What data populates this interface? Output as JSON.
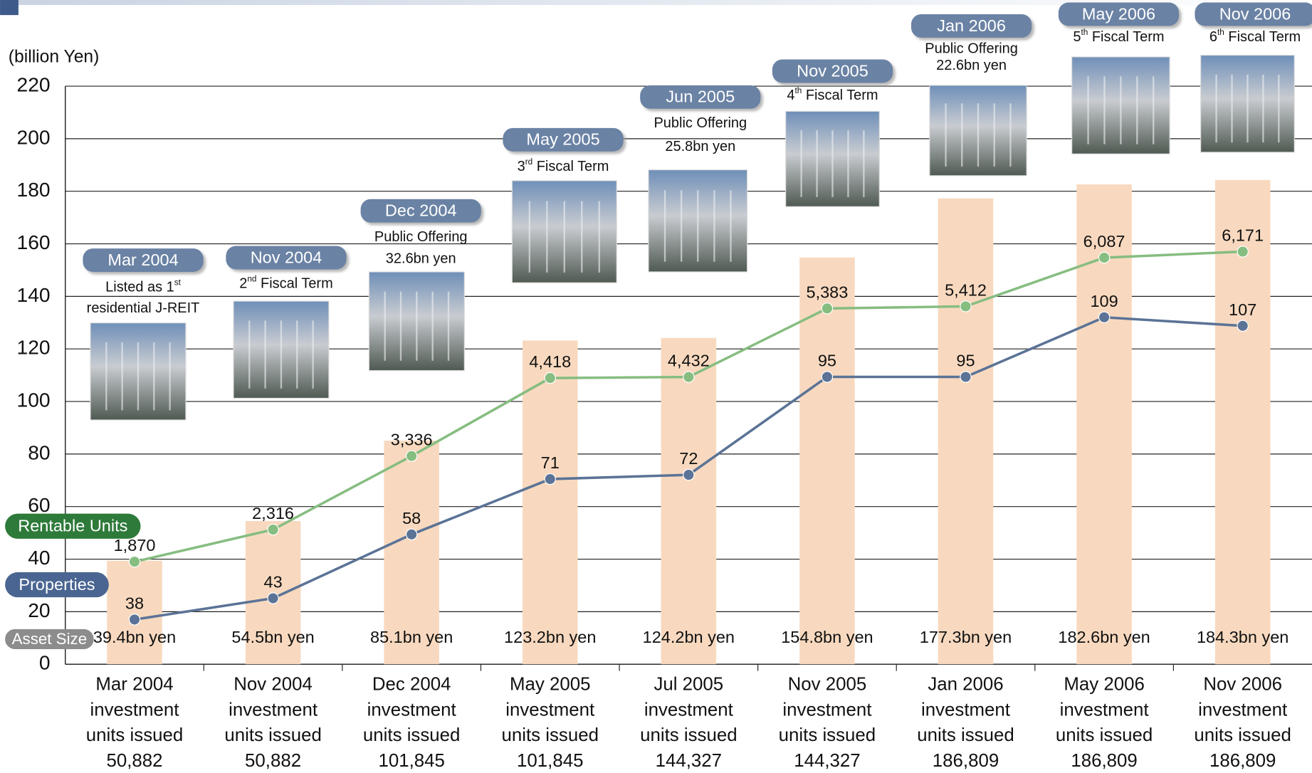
{
  "chart_data": {
    "type": "bar",
    "y_label": "(billion Yen)",
    "categories": [
      [
        "Mar 2004",
        "investment",
        "units issued",
        "50,882"
      ],
      [
        "Nov 2004",
        "investment",
        "units issued",
        "50,882"
      ],
      [
        "Dec 2004",
        "investment",
        "units issued",
        "101,845"
      ],
      [
        "May 2005",
        "investment",
        "units issued",
        "101,845"
      ],
      [
        "Jul 2005",
        "investment",
        "units issued",
        "144,327"
      ],
      [
        "Nov 2005",
        "investment",
        "units issued",
        "144,327"
      ],
      [
        "Jan 2006",
        "investment",
        "units issued",
        "186,809"
      ],
      [
        "May 2006",
        "investment",
        "units issued",
        "186,809"
      ],
      [
        "Nov 2006",
        "investment",
        "units issued",
        "186,809"
      ]
    ],
    "series": [
      {
        "name": "Asset Size",
        "type": "bar",
        "color": "#f8d9bf",
        "badge_color": "#8c8c8c",
        "values": [
          39.4,
          54.5,
          85.1,
          123.2,
          124.2,
          154.8,
          177.3,
          182.6,
          184.3
        ],
        "value_labels": [
          "39.4bn yen",
          "54.5bn yen",
          "85.1bn yen",
          "123.2bn yen",
          "124.2bn yen",
          "154.8bn yen",
          "177.3bn yen",
          "182.6bn yen",
          "184.3bn yen"
        ]
      },
      {
        "name": "Rentable Units",
        "type": "line",
        "color": "#86bd80",
        "badge_color": "#2e7a3a",
        "axis": "y2",
        "values": [
          1870,
          2316,
          3336,
          4418,
          4432,
          5383,
          5412,
          6087,
          6171
        ],
        "value_labels": [
          "1,870",
          "2,316",
          "3,336",
          "4,418",
          "4,432",
          "5,383",
          "5,412",
          "6,087",
          "6,171"
        ]
      },
      {
        "name": "Properties",
        "type": "line",
        "color": "#5b7396",
        "badge_color": "#4a6591",
        "axis": "y3",
        "values": [
          38,
          43,
          58,
          71,
          72,
          95,
          95,
          109,
          107
        ]
      }
    ],
    "ylim": [
      0,
      220
    ],
    "yticks": [
      0,
      20,
      40,
      60,
      80,
      100,
      120,
      140,
      160,
      180,
      200,
      220
    ],
    "y2lim": [
      448,
      8466
    ],
    "y3lim": [
      27.5,
      163.3
    ],
    "grid": true,
    "milestones": [
      {
        "date": "Mar 2004",
        "lines": [
          {
            "pre": "Listed as 1",
            "sup": "st"
          },
          "residential J-REIT"
        ]
      },
      {
        "date": "Nov 2004",
        "lines": [
          {
            "pre": "2",
            "sup": "nd",
            "post": " Fiscal Term"
          }
        ]
      },
      {
        "date": "Dec 2004",
        "lines": [
          "Public Offering",
          "32.6bn yen"
        ]
      },
      {
        "date": "May 2005",
        "lines": [
          {
            "pre": "3",
            "sup": "rd",
            "post": " Fiscal Term"
          }
        ]
      },
      {
        "date": "Jun 2005",
        "lines": [
          "Public Offering",
          "25.8bn yen"
        ]
      },
      {
        "date": "Nov 2005",
        "lines": [
          {
            "pre": "4",
            "sup": "th",
            "post": " Fiscal Term"
          }
        ]
      },
      {
        "date": "Jan 2006",
        "lines": [
          "Public Offering",
          "22.6bn yen"
        ]
      },
      {
        "date": "May 2006",
        "lines": [
          {
            "pre": "5",
            "sup": "th",
            "post": " Fiscal Term"
          }
        ]
      },
      {
        "date": "Nov 2006",
        "lines": [
          {
            "pre": "6",
            "sup": "th",
            "post": " Fiscal Term"
          }
        ]
      }
    ]
  }
}
